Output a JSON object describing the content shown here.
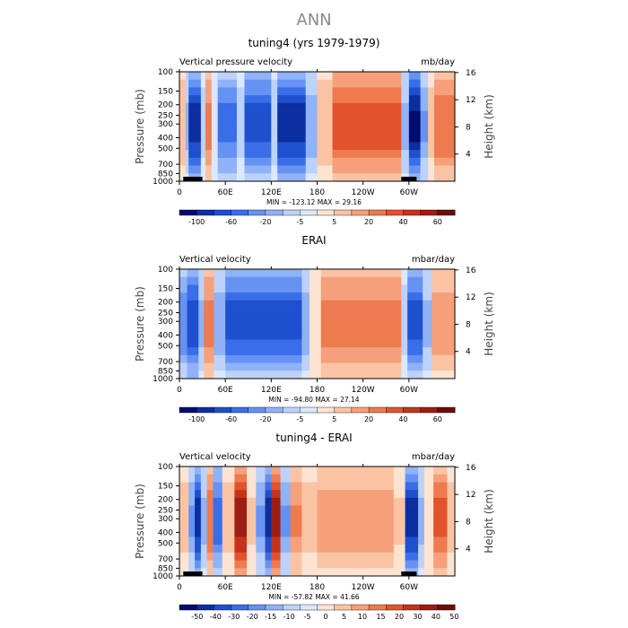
{
  "figure": {
    "title": "ANN",
    "lat_sublabel": ""
  },
  "colors": {
    "neg": [
      "#050c6f",
      "#0b2fa0",
      "#1d4fcf",
      "#3a6ee8",
      "#6592f3",
      "#90b2f6",
      "#bcd2fa",
      "#dce8fd"
    ],
    "pos": [
      "#fde3d2",
      "#fac4a4",
      "#f5a07a",
      "#ee7a4f",
      "#e2522b",
      "#c5331b",
      "#9c1d12",
      "#6b0d08"
    ],
    "land": "#000000"
  },
  "chart_data": [
    {
      "type": "heatmap",
      "title": "tuning4 (yrs 1979-1979)",
      "left_label": "Vertical pressure velocity",
      "right_label": "mb/day",
      "ylabel": "Pressure (mb)",
      "ylabel_right": "Height (km)",
      "y_ticks": [
        "100",
        "150",
        "200",
        "250",
        "300",
        "400",
        "500",
        "700",
        "850",
        "1000"
      ],
      "y_ticks_right": [
        "16",
        "12",
        "8",
        "4"
      ],
      "x_ticks": [
        "0",
        "60E",
        "120E",
        "180",
        "120W",
        "60W"
      ],
      "stats": "MIN = -123.12   MAX =  29.16",
      "colorbar_labels": [
        "-100",
        "-60",
        "-20",
        "-5",
        "5",
        "20",
        "40",
        "60"
      ],
      "colorbar_levels": 16,
      "bands": [
        {
          "lon0": 0,
          "lon1": 8,
          "v": 0.25
        },
        {
          "lon0": 8,
          "lon1": 12,
          "v": -0.3
        },
        {
          "lon0": 12,
          "lon1": 28,
          "v": -0.85
        },
        {
          "lon0": 28,
          "lon1": 34,
          "v": -0.2
        },
        {
          "lon0": 34,
          "lon1": 42,
          "v": 0.45
        },
        {
          "lon0": 42,
          "lon1": 50,
          "v": -0.1
        },
        {
          "lon0": 50,
          "lon1": 75,
          "v": -0.55
        },
        {
          "lon0": 75,
          "lon1": 85,
          "v": -0.2
        },
        {
          "lon0": 85,
          "lon1": 120,
          "v": -0.7
        },
        {
          "lon0": 120,
          "lon1": 128,
          "v": -0.25
        },
        {
          "lon0": 128,
          "lon1": 165,
          "v": -0.85
        },
        {
          "lon0": 165,
          "lon1": 180,
          "v": -0.35
        },
        {
          "lon0": 180,
          "lon1": 200,
          "v": 0.25
        },
        {
          "lon0": 200,
          "lon1": 290,
          "v": 0.6
        },
        {
          "lon0": 290,
          "lon1": 300,
          "v": -0.3
        },
        {
          "lon0": 300,
          "lon1": 315,
          "v": -0.95
        },
        {
          "lon0": 315,
          "lon1": 325,
          "v": -0.4
        },
        {
          "lon0": 325,
          "lon1": 333,
          "v": 0.2
        },
        {
          "lon0": 333,
          "lon1": 360,
          "v": 0.5
        }
      ],
      "land": [
        [
          5,
          30
        ],
        [
          290,
          310
        ]
      ]
    },
    {
      "type": "heatmap",
      "title": "ERAI",
      "left_label": "Vertical velocity",
      "right_label": "mbar/day",
      "ylabel": "Pressure (mb)",
      "ylabel_right": "Height (km)",
      "y_ticks": [
        "100",
        "150",
        "200",
        "250",
        "300",
        "400",
        "500",
        "700",
        "850",
        "1000"
      ],
      "y_ticks_right": [
        "16",
        "12",
        "8",
        "4"
      ],
      "x_ticks": [
        "0",
        "60E",
        "120E",
        "180",
        "120W",
        "60W"
      ],
      "stats": "MIN = -94.80   MAX =  27.14",
      "colorbar_labels": [
        "-100",
        "-60",
        "-20",
        "-5",
        "5",
        "20",
        "40",
        "60"
      ],
      "colorbar_levels": 16,
      "bands": [
        {
          "lon0": 0,
          "lon1": 10,
          "v": -0.5
        },
        {
          "lon0": 10,
          "lon1": 25,
          "v": -0.75
        },
        {
          "lon0": 25,
          "lon1": 32,
          "v": -0.3
        },
        {
          "lon0": 32,
          "lon1": 45,
          "v": 0.45
        },
        {
          "lon0": 45,
          "lon1": 60,
          "v": -0.35
        },
        {
          "lon0": 60,
          "lon1": 160,
          "v": -0.7
        },
        {
          "lon0": 160,
          "lon1": 170,
          "v": -0.35
        },
        {
          "lon0": 170,
          "lon1": 185,
          "v": 0.1
        },
        {
          "lon0": 185,
          "lon1": 290,
          "v": 0.45
        },
        {
          "lon0": 290,
          "lon1": 298,
          "v": -0.2
        },
        {
          "lon0": 298,
          "lon1": 318,
          "v": -0.7
        },
        {
          "lon0": 318,
          "lon1": 330,
          "v": -0.3
        },
        {
          "lon0": 330,
          "lon1": 360,
          "v": 0.35
        }
      ],
      "land": []
    },
    {
      "type": "heatmap",
      "title": "tuning4 - ERAI",
      "left_label": "Vertical velocity",
      "right_label": "mbar/day",
      "ylabel": "Pressure (mb)",
      "ylabel_right": "Height (km)",
      "y_ticks": [
        "100",
        "150",
        "200",
        "250",
        "300",
        "400",
        "500",
        "700",
        "850",
        "1000"
      ],
      "y_ticks_right": [
        "16",
        "12",
        "8",
        "4"
      ],
      "x_ticks": [
        "0",
        "60E",
        "120E",
        "180",
        "120W",
        "60W"
      ],
      "stats": "MIN = -57.82   MAX =  41.66",
      "colorbar_labels": [
        "-50",
        "-40",
        "-30",
        "-20",
        "-15",
        "-10",
        "-5",
        "0",
        "5",
        "10",
        "15",
        "20",
        "30",
        "40",
        "50"
      ],
      "colorbar_levels": 16,
      "bands": [
        {
          "lon0": 0,
          "lon1": 12,
          "v": 0.2
        },
        {
          "lon0": 12,
          "lon1": 20,
          "v": -0.4
        },
        {
          "lon0": 20,
          "lon1": 28,
          "v": -0.85
        },
        {
          "lon0": 28,
          "lon1": 36,
          "v": -0.3
        },
        {
          "lon0": 36,
          "lon1": 44,
          "v": 0.5
        },
        {
          "lon0": 44,
          "lon1": 56,
          "v": -0.6
        },
        {
          "lon0": 56,
          "lon1": 72,
          "v": 0.2
        },
        {
          "lon0": 72,
          "lon1": 88,
          "v": 0.85
        },
        {
          "lon0": 88,
          "lon1": 100,
          "v": 0.15
        },
        {
          "lon0": 100,
          "lon1": 112,
          "v": -0.4
        },
        {
          "lon0": 112,
          "lon1": 120,
          "v": -0.85
        },
        {
          "lon0": 120,
          "lon1": 132,
          "v": 0.85
        },
        {
          "lon0": 132,
          "lon1": 145,
          "v": -0.4
        },
        {
          "lon0": 145,
          "lon1": 160,
          "v": 0.4
        },
        {
          "lon0": 160,
          "lon1": 180,
          "v": 0.2
        },
        {
          "lon0": 180,
          "lon1": 280,
          "v": 0.35
        },
        {
          "lon0": 280,
          "lon1": 295,
          "v": 0.15
        },
        {
          "lon0": 295,
          "lon1": 312,
          "v": -0.85
        },
        {
          "lon0": 312,
          "lon1": 320,
          "v": -0.3
        },
        {
          "lon0": 320,
          "lon1": 332,
          "v": 0.1
        },
        {
          "lon0": 332,
          "lon1": 350,
          "v": 0.55
        },
        {
          "lon0": 350,
          "lon1": 360,
          "v": 0.2
        }
      ],
      "land": [
        [
          5,
          30
        ],
        [
          290,
          310
        ]
      ]
    }
  ]
}
